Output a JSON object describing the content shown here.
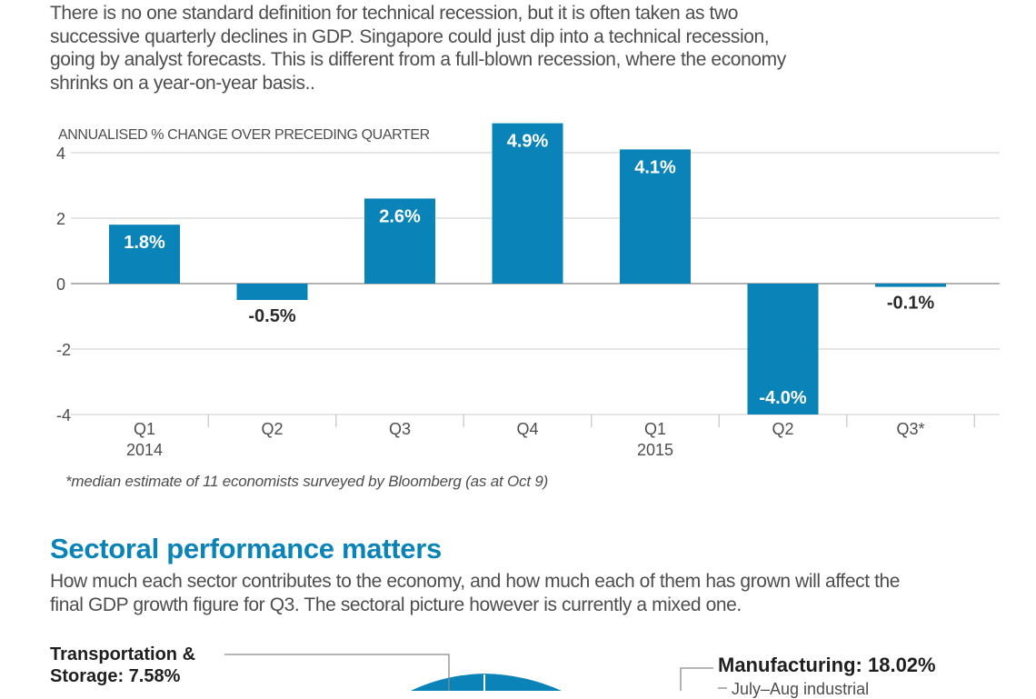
{
  "intro": {
    "text": "There is no one standard definition for technical recession, but it is often taken as two successive quarterly declines in GDP. Singapore could just dip into a technical recession, going by analyst forecasts. This is different from a full-blown recession, where the economy shrinks on a year-on-year basis.."
  },
  "chart_data": {
    "type": "bar",
    "title": "",
    "ylabel": "ANNUALISED % CHANGE OVER PRECEDING QUARTER",
    "xlabel": "",
    "categories": [
      "Q1\n2014",
      "Q2",
      "Q3",
      "Q4",
      "Q1\n2015",
      "Q2",
      "Q3*"
    ],
    "category_lines": [
      [
        "Q1",
        "2014"
      ],
      [
        "Q2"
      ],
      [
        "Q3"
      ],
      [
        "Q4"
      ],
      [
        "Q1",
        "2015"
      ],
      [
        "Q2"
      ],
      [
        "Q3*"
      ]
    ],
    "values": [
      1.8,
      -0.5,
      2.6,
      4.9,
      4.1,
      -4.0,
      -0.1
    ],
    "data_labels": [
      "1.8%",
      "-0.5%",
      "2.6%",
      "4.9%",
      "4.1%",
      "-4.0%",
      "-0.1%"
    ],
    "yticks": [
      4,
      2,
      0,
      -2,
      -4
    ],
    "ylim": [
      -4,
      4.9
    ],
    "grid": true,
    "bar_color": "#0a84b8"
  },
  "footnote": "*median estimate of 11 economists surveyed by Bloomberg (as at Oct 9)",
  "section": {
    "title": "Sectoral performance matters",
    "description": "How much each sector contributes to the economy, and how much each of them has grown will affect the final GDP growth figure for Q3. The sectoral picture however is currently a mixed one."
  },
  "sectors": {
    "transport_line1": "Transportation &",
    "transport_line2": "Storage: 7.58%",
    "manufacturing": "Manufacturing: 18.02%",
    "manufacturing_note": "July–Aug industrial",
    "pie_color": "#0a84b8"
  }
}
